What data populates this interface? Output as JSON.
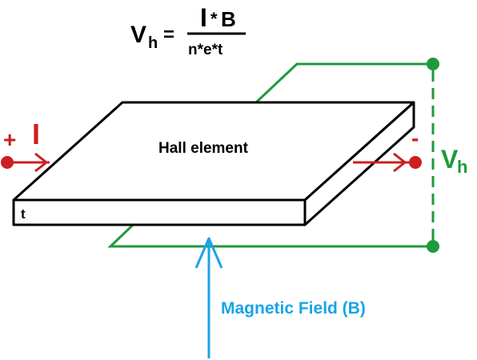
{
  "formula": {
    "lhs_symbol": "V",
    "lhs_subscript": "h",
    "equals": "=",
    "numerator_I": "I",
    "numerator_op": "*",
    "numerator_B": "B",
    "denominator": "n*e*t"
  },
  "labels": {
    "element": "Hall element",
    "thickness": "t",
    "current_plus": "+",
    "current_symbol": "I",
    "current_minus": "-",
    "voltage_symbol": "V",
    "voltage_subscript": "h",
    "field": "Magnetic Field  (B)"
  },
  "colors": {
    "outline": "#000000",
    "current": "#cc1f1f",
    "voltage": "#1e9a3a",
    "field": "#1aa3e8",
    "formula": "#000000"
  }
}
